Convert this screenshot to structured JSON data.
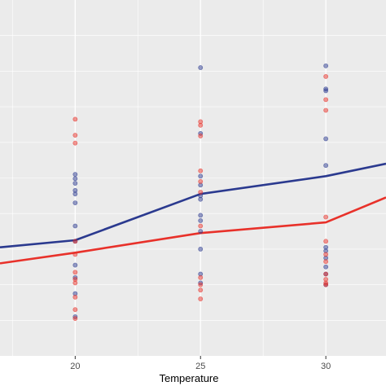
{
  "chart_data": {
    "type": "scatter",
    "xlabel": "Temperature",
    "ylabel": "",
    "xlim": [
      17.0,
      32.4
    ],
    "ylim": [
      0,
      10
    ],
    "x_ticks": [
      20,
      25,
      30
    ],
    "x_tick_labels": [
      "20",
      "25",
      "30"
    ],
    "y_gridlines": [
      1,
      2,
      3,
      4,
      5,
      6,
      7,
      8,
      9
    ],
    "grid": true,
    "legend": "none",
    "background": "#ebebeb",
    "gridline_color": "#ffffff",
    "series": [
      {
        "color": "#2b3a8f",
        "points": [
          [
            20,
            5.1
          ],
          [
            20,
            4.98
          ],
          [
            20,
            4.85
          ],
          [
            20,
            4.65
          ],
          [
            20,
            4.55
          ],
          [
            20,
            4.3
          ],
          [
            20,
            3.65
          ],
          [
            20,
            3.22
          ],
          [
            20,
            2.55
          ],
          [
            20,
            2.2
          ],
          [
            20,
            1.75
          ],
          [
            20,
            1.1
          ],
          [
            25,
            8.1
          ],
          [
            25,
            6.25
          ],
          [
            25,
            5.05
          ],
          [
            25,
            4.8
          ],
          [
            25,
            4.5
          ],
          [
            25,
            4.4
          ],
          [
            25,
            3.95
          ],
          [
            25,
            3.8
          ],
          [
            25,
            3.5
          ],
          [
            25,
            3.0
          ],
          [
            25,
            2.3
          ],
          [
            25,
            2.05
          ],
          [
            30,
            8.15
          ],
          [
            30,
            7.5
          ],
          [
            30,
            7.45
          ],
          [
            30,
            6.1
          ],
          [
            30,
            5.35
          ],
          [
            30,
            3.05
          ],
          [
            30,
            2.95
          ],
          [
            30,
            2.75
          ],
          [
            30,
            2.5
          ],
          [
            30,
            2.3
          ],
          [
            30,
            2.0
          ]
        ],
        "trend": [
          [
            17.0,
            3.05
          ],
          [
            20,
            3.25
          ],
          [
            25,
            4.55
          ],
          [
            30,
            5.05
          ],
          [
            32.4,
            5.4
          ]
        ]
      },
      {
        "color": "#e8312a",
        "points": [
          [
            20,
            6.65
          ],
          [
            20,
            6.2
          ],
          [
            20,
            5.98
          ],
          [
            20,
            3.22
          ],
          [
            20,
            2.85
          ],
          [
            20,
            2.35
          ],
          [
            20,
            2.15
          ],
          [
            20,
            2.05
          ],
          [
            20,
            1.65
          ],
          [
            20,
            1.3
          ],
          [
            20,
            1.05
          ],
          [
            25,
            6.58
          ],
          [
            25,
            6.48
          ],
          [
            25,
            6.18
          ],
          [
            25,
            5.2
          ],
          [
            25,
            4.9
          ],
          [
            25,
            4.6
          ],
          [
            25,
            3.65
          ],
          [
            25,
            2.2
          ],
          [
            25,
            2.0
          ],
          [
            25,
            1.85
          ],
          [
            25,
            1.6
          ],
          [
            30,
            7.85
          ],
          [
            30,
            7.2
          ],
          [
            30,
            6.9
          ],
          [
            30,
            3.9
          ],
          [
            30,
            3.22
          ],
          [
            30,
            2.85
          ],
          [
            30,
            2.65
          ],
          [
            30,
            2.3
          ],
          [
            30,
            2.15
          ],
          [
            30,
            2.05
          ],
          [
            30,
            2.0
          ]
        ],
        "trend": [
          [
            17.0,
            2.6
          ],
          [
            20,
            2.9
          ],
          [
            25,
            3.45
          ],
          [
            30,
            3.75
          ],
          [
            32.4,
            4.45
          ]
        ]
      }
    ]
  }
}
